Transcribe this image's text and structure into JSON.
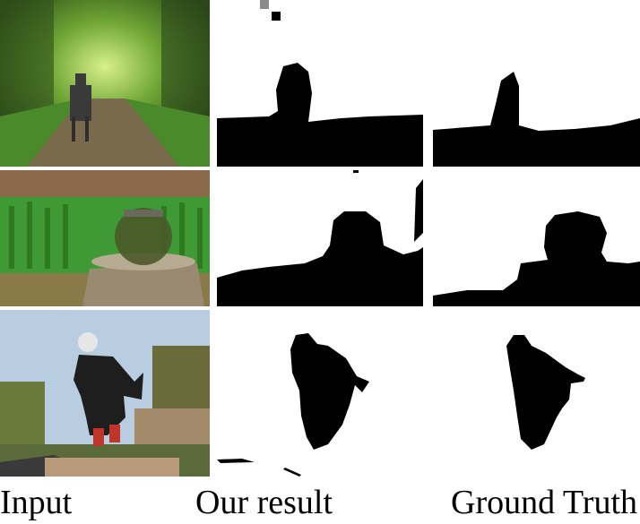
{
  "figure": {
    "columns": [
      {
        "id": "input",
        "caption": "Input"
      },
      {
        "id": "ours",
        "caption": "Our result"
      },
      {
        "id": "gt",
        "caption": "Ground Truth"
      }
    ],
    "rows": [
      {
        "subject": "dog on forest path"
      },
      {
        "subject": "fishbowl on tree stump"
      },
      {
        "subject": "skateboarder in suit"
      }
    ]
  },
  "colors": {
    "mask_foreground": "#000000",
    "mask_background": "#ffffff",
    "forest_green": "#4f7d2b",
    "grass_green": "#3f9a36",
    "sky_blue": "#b9cde0"
  }
}
